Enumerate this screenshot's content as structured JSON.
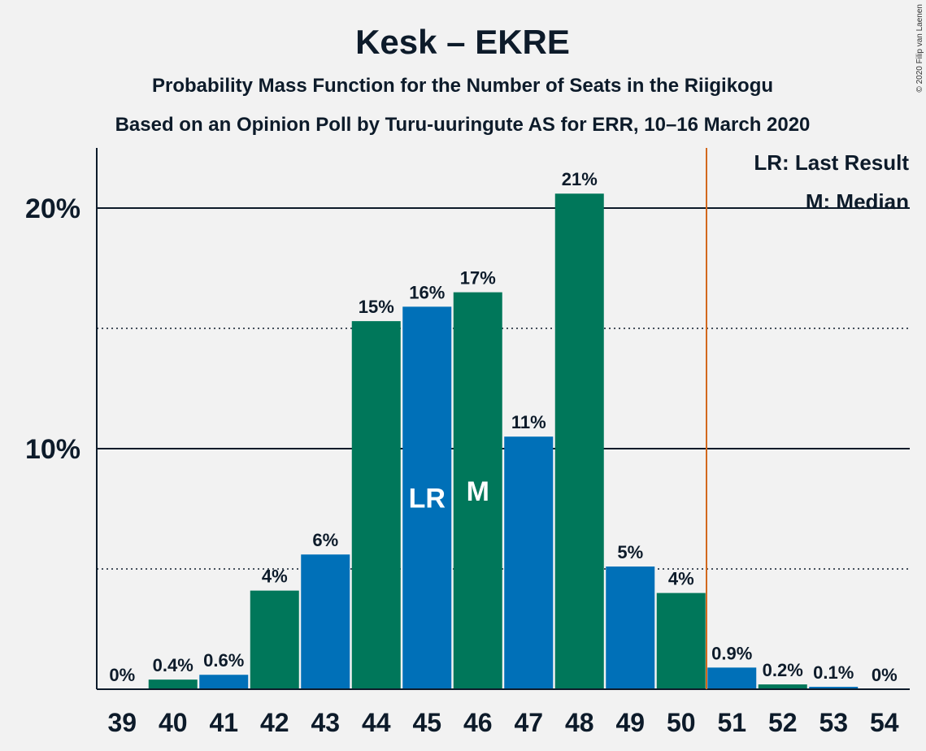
{
  "chart_data": {
    "type": "bar",
    "title": "Kesk – EKRE",
    "subtitle_1": "Probability Mass Function for the Number of Seats in the Riigikogu",
    "subtitle_2": "Based on an Opinion Poll by Turu-uuringute AS for ERR, 10–16 March 2020",
    "copyright": "© 2020 Filip van Laenen",
    "categories": [
      "39",
      "40",
      "41",
      "42",
      "43",
      "44",
      "45",
      "46",
      "47",
      "48",
      "49",
      "50",
      "51",
      "52",
      "53",
      "54"
    ],
    "values": [
      0,
      0.4,
      0.6,
      4.1,
      5.6,
      15.3,
      15.9,
      16.5,
      10.5,
      20.6,
      5.1,
      4.0,
      0.9,
      0.2,
      0.1,
      0
    ],
    "data_labels": [
      "0%",
      "0.4%",
      "0.6%",
      "4%",
      "6%",
      "15%",
      "16%",
      "17%",
      "11%",
      "21%",
      "5%",
      "4%",
      "0.9%",
      "0.2%",
      "0.1%",
      "0%"
    ],
    "yticks": [
      {
        "value": 10,
        "label": "10%"
      },
      {
        "value": 20,
        "label": "20%"
      }
    ],
    "ylim": [
      0,
      22.5
    ],
    "minor_gridlines": [
      5,
      15
    ],
    "majority_line_after": "50",
    "last_result": "45",
    "median": "46",
    "markers": {
      "last_result": "LR",
      "median": "M"
    },
    "legend": [
      "LR: Last Result",
      "M: Median"
    ],
    "legend_position": "top-right",
    "colors": {
      "green": "#00775a",
      "blue": "#0070b8",
      "majority_line": "#d2691e",
      "axis": "#0d1b2a"
    }
  }
}
